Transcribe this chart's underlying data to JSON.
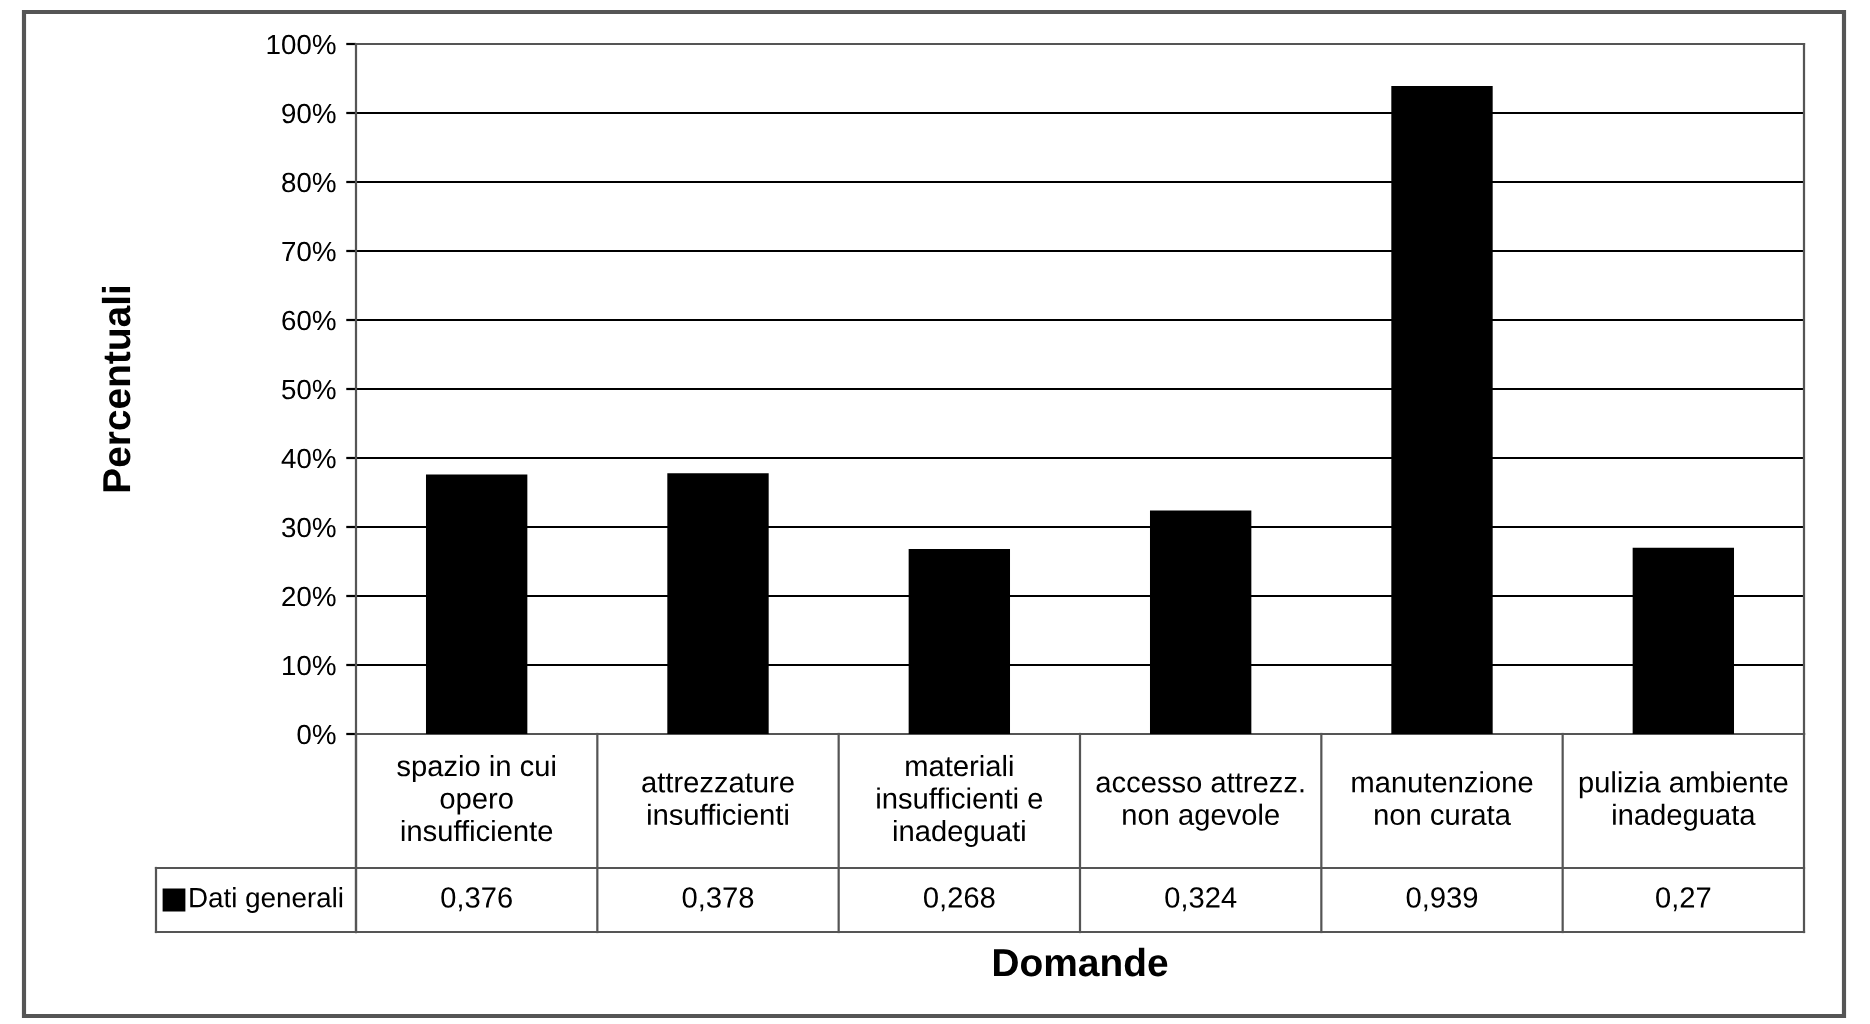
{
  "chart_data": {
    "type": "bar",
    "xlabel": "Domande",
    "ylabel": "Percentuali",
    "categories": [
      "spazio in cui opero insufficiente",
      "attrezzature insufficienti",
      "materiali insufficienti e inadeguati",
      "accesso attrezz. non agevole",
      "manutenzione non curata",
      "pulizia ambiente inadeguata"
    ],
    "series": [
      {
        "name": "Dati generali",
        "color": "#000000",
        "values": [
          0.376,
          0.378,
          0.268,
          0.324,
          0.939,
          0.27
        ],
        "value_labels": [
          "0,376",
          "0,378",
          "0,268",
          "0,324",
          "0,939",
          "0,27"
        ]
      }
    ],
    "ylim": [
      0,
      1
    ],
    "yticks": [
      {
        "value": 0,
        "label": "0%"
      },
      {
        "value": 0.1,
        "label": "10%"
      },
      {
        "value": 0.2,
        "label": "20%"
      },
      {
        "value": 0.3,
        "label": "30%"
      },
      {
        "value": 0.4,
        "label": "40%"
      },
      {
        "value": 0.5,
        "label": "50%"
      },
      {
        "value": 0.6,
        "label": "60%"
      },
      {
        "value": 0.7,
        "label": "70%"
      },
      {
        "value": 0.8,
        "label": "80%"
      },
      {
        "value": 0.9,
        "label": "90%"
      },
      {
        "value": 1,
        "label": "100%"
      }
    ],
    "grid": "y",
    "legend": "bottom"
  }
}
